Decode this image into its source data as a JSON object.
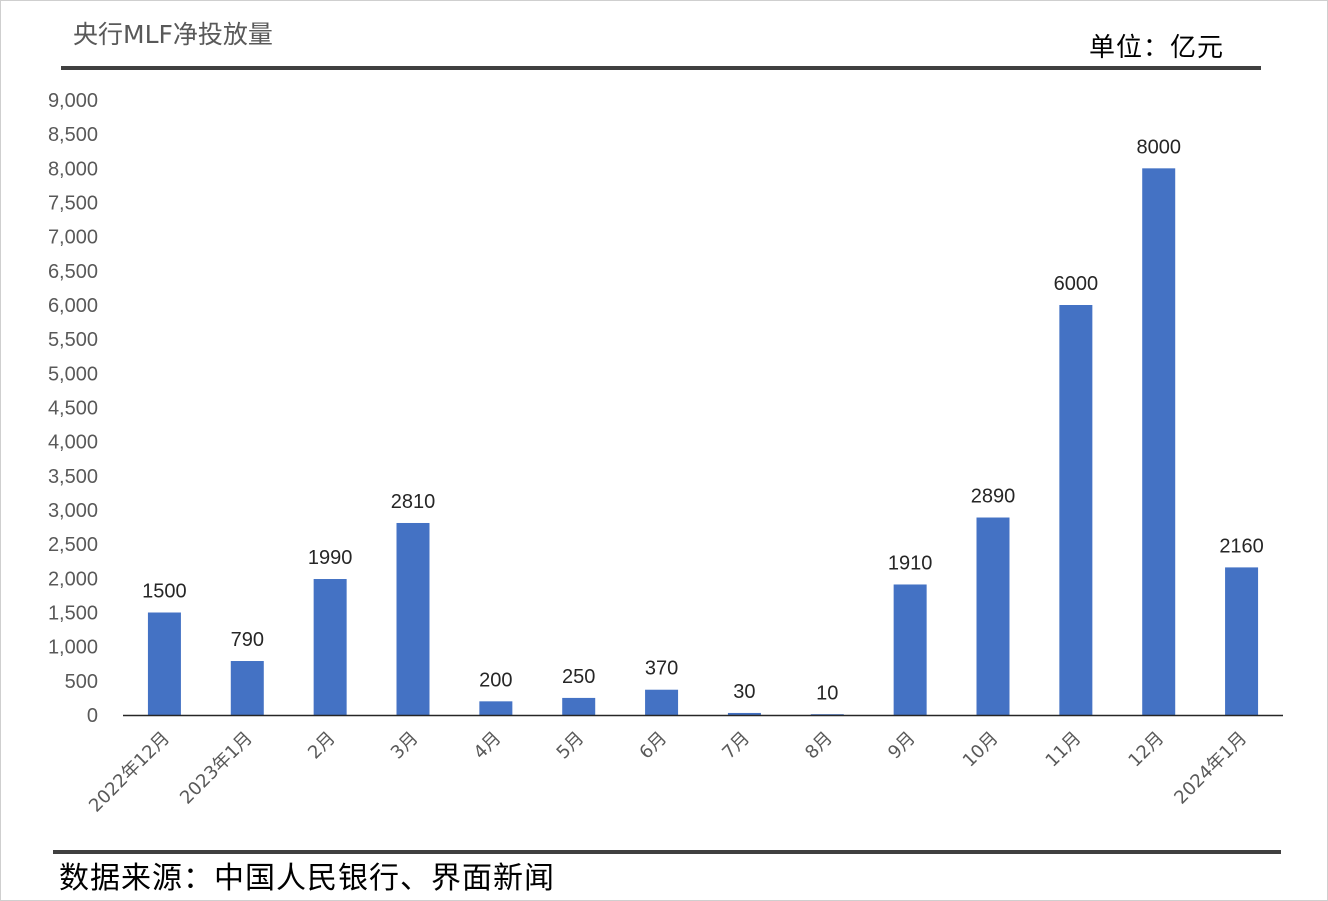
{
  "header": {
    "title": "央行MLF净投放量",
    "unit": "单位：亿元"
  },
  "footer": {
    "source": "数据来源：中国人民银行、界面新闻"
  },
  "chart_data": {
    "type": "bar",
    "title": "央行MLF净投放量",
    "xlabel": "",
    "ylabel": "",
    "ylim": [
      0,
      9000
    ],
    "ytick_step": 500,
    "ytick_labels": [
      "0",
      "500",
      "1,000",
      "1,500",
      "2,000",
      "2,500",
      "3,000",
      "3,500",
      "4,000",
      "4,500",
      "5,000",
      "5,500",
      "6,000",
      "6,500",
      "7,000",
      "7,500",
      "8,000",
      "8,500",
      "9,000"
    ],
    "categories": [
      "2022年12月",
      "2023年1月",
      "2月",
      "3月",
      "4月",
      "5月",
      "6月",
      "7月",
      "8月",
      "9月",
      "10月",
      "11月",
      "12月",
      "2024年1月"
    ],
    "values": [
      1500,
      790,
      1990,
      2810,
      200,
      250,
      370,
      30,
      10,
      1910,
      2890,
      6000,
      8000,
      2160
    ],
    "data_labels": true,
    "grid": false,
    "legend": "none",
    "bar_color": "#4472C4"
  }
}
